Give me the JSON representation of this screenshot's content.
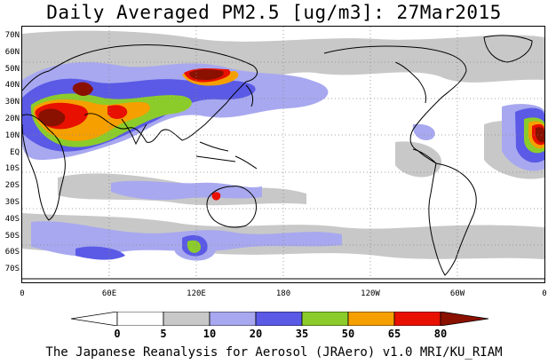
{
  "title": "Daily Averaged PM2.5 [ug/m3]: 27Mar2015",
  "footer": "The Japanese Reanalysis for Aerosol (JRAero) v1.0 MRI/KU_RIAM",
  "lat_labels": [
    "70N",
    "60N",
    "50N",
    "40N",
    "30N",
    "20N",
    "10N",
    "EQ",
    "10S",
    "20S",
    "30S",
    "40S",
    "50S",
    "60S",
    "70S"
  ],
  "lon_labels": [
    "0",
    "60E",
    "120E",
    "180",
    "120W",
    "60W",
    "0"
  ],
  "colorbar": {
    "levels": [
      "0",
      "5",
      "10",
      "20",
      "35",
      "50",
      "65",
      "80"
    ],
    "colors": [
      "#ffffff",
      "#c8c8c8",
      "#a8a8f0",
      "#5a5ae6",
      "#8ccc2a",
      "#f5a000",
      "#e81000",
      "#8a1000"
    ]
  },
  "colors": {
    "coast": "#000000",
    "grid": "#888888"
  }
}
